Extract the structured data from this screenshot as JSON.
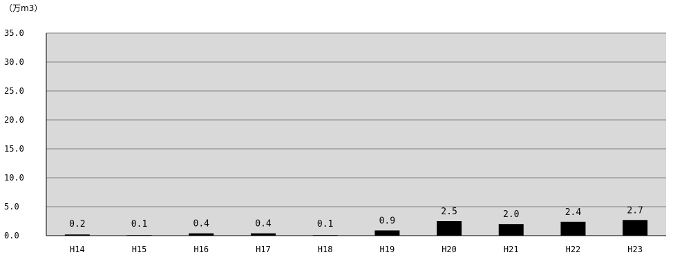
{
  "chart_data": {
    "type": "bar",
    "unit_label": "（万m3）",
    "categories": [
      "H14",
      "H15",
      "H16",
      "H17",
      "H18",
      "H19",
      "H20",
      "H21",
      "H22",
      "H23"
    ],
    "values": [
      0.2,
      0.1,
      0.4,
      0.4,
      0.1,
      0.9,
      2.5,
      2.0,
      2.4,
      2.7
    ],
    "data_labels": [
      "0.2",
      "0.1",
      "0.4",
      "0.4",
      "0.1",
      "0.9",
      "2.5",
      "2.0",
      "2.4",
      "2.7"
    ],
    "y_ticks": [
      0,
      5,
      10,
      15,
      20,
      25,
      30,
      35
    ],
    "y_tick_labels": [
      "0.0",
      "5.0",
      "10.0",
      "15.0",
      "20.0",
      "25.0",
      "30.0",
      "35.0"
    ],
    "ylim": [
      0,
      35
    ],
    "grid": true,
    "legend": "none",
    "colors": {
      "bar": "#000000",
      "plot_bg": "#d9d9d9",
      "grid": "#808080"
    }
  }
}
